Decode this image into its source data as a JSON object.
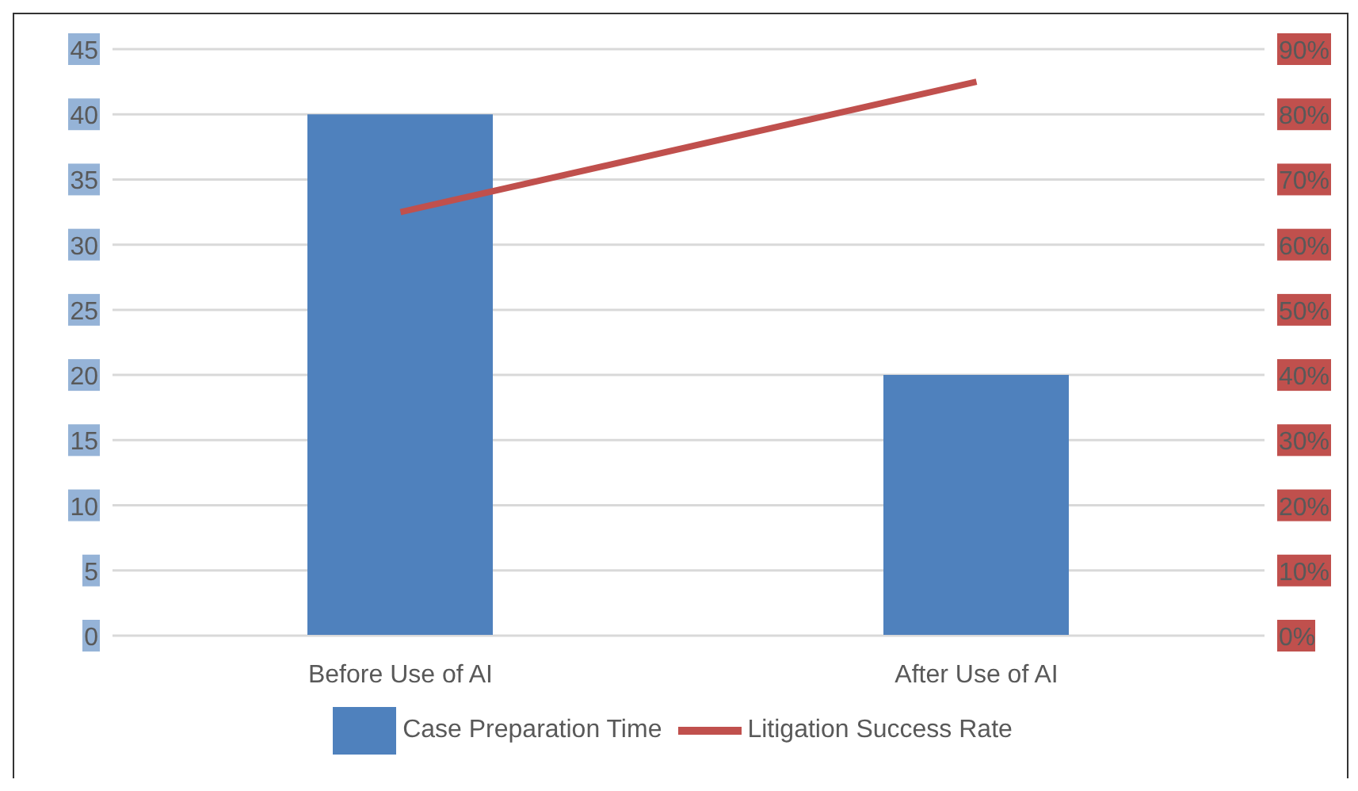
{
  "chart_data": {
    "type": "bar",
    "categories": [
      "Before Use of AI",
      "After Use of AI"
    ],
    "series": [
      {
        "name": "Case Preparation Time",
        "color": "#4f81bd",
        "values": [
          40,
          20
        ]
      },
      {
        "name": "Litigation Success Rate",
        "type": "line",
        "axis": "y2",
        "color": "#c0504d",
        "values": [
          65,
          85
        ]
      }
    ],
    "ylim": [
      0,
      45
    ],
    "yticks": [
      0,
      5,
      10,
      15,
      20,
      25,
      30,
      35,
      40,
      45
    ],
    "y2lim": [
      0,
      90
    ],
    "y2ticks": [
      {
        "value": 0,
        "label": "0%"
      },
      {
        "value": 10,
        "label": "10%"
      },
      {
        "value": 20,
        "label": "20%"
      },
      {
        "value": 30,
        "label": "30%"
      },
      {
        "value": 40,
        "label": "40%"
      },
      {
        "value": 50,
        "label": "50%"
      },
      {
        "value": 60,
        "label": "60%"
      },
      {
        "value": 70,
        "label": "70%"
      },
      {
        "value": 80,
        "label": "80%"
      },
      {
        "value": 90,
        "label": "90%"
      }
    ],
    "grid": "y",
    "legend": "bottom",
    "marker": "none"
  }
}
